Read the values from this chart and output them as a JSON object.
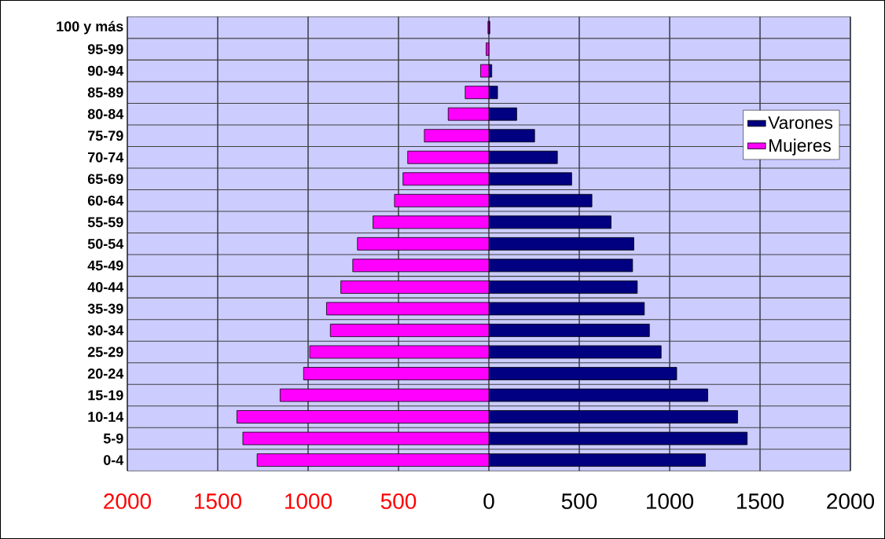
{
  "chart_data": {
    "type": "bar",
    "orientation": "horizontal",
    "categories": [
      "100 y más",
      "95-99",
      "90-94",
      "85-89",
      "80-84",
      "75-79",
      "70-74",
      "65-69",
      "60-64",
      "55-59",
      "50-54",
      "45-49",
      "40-44",
      "35-39",
      "30-34",
      "25-29",
      "20-24",
      "15-19",
      "10-14",
      "5-9",
      "0-4"
    ],
    "series": [
      {
        "name": "Varones",
        "color": "#000080",
        "values": [
          5,
          null,
          16,
          48,
          154,
          253,
          379,
          458,
          570,
          676,
          802,
          795,
          821,
          860,
          888,
          953,
          1039,
          1211,
          1376,
          1429,
          1198
        ]
      },
      {
        "name": "Mujeres",
        "color": "#ff00ff",
        "values": [
          -5,
          -15,
          -46,
          -131,
          -225,
          -357,
          -449,
          -475,
          -522,
          -641,
          -727,
          -753,
          -819,
          -898,
          -877,
          -991,
          -1025,
          -1155,
          -1394,
          -1361,
          -1282
        ]
      }
    ],
    "xlim": [
      -2000,
      2000
    ],
    "xticks": [
      {
        "value": -2000,
        "label": "2000"
      },
      {
        "value": -1500,
        "label": "1500"
      },
      {
        "value": -1000,
        "label": "1000"
      },
      {
        "value": -500,
        "label": "500"
      },
      0,
      500,
      1000,
      1500,
      2000
    ],
    "stacked": true,
    "grid": true,
    "legend": "right"
  }
}
